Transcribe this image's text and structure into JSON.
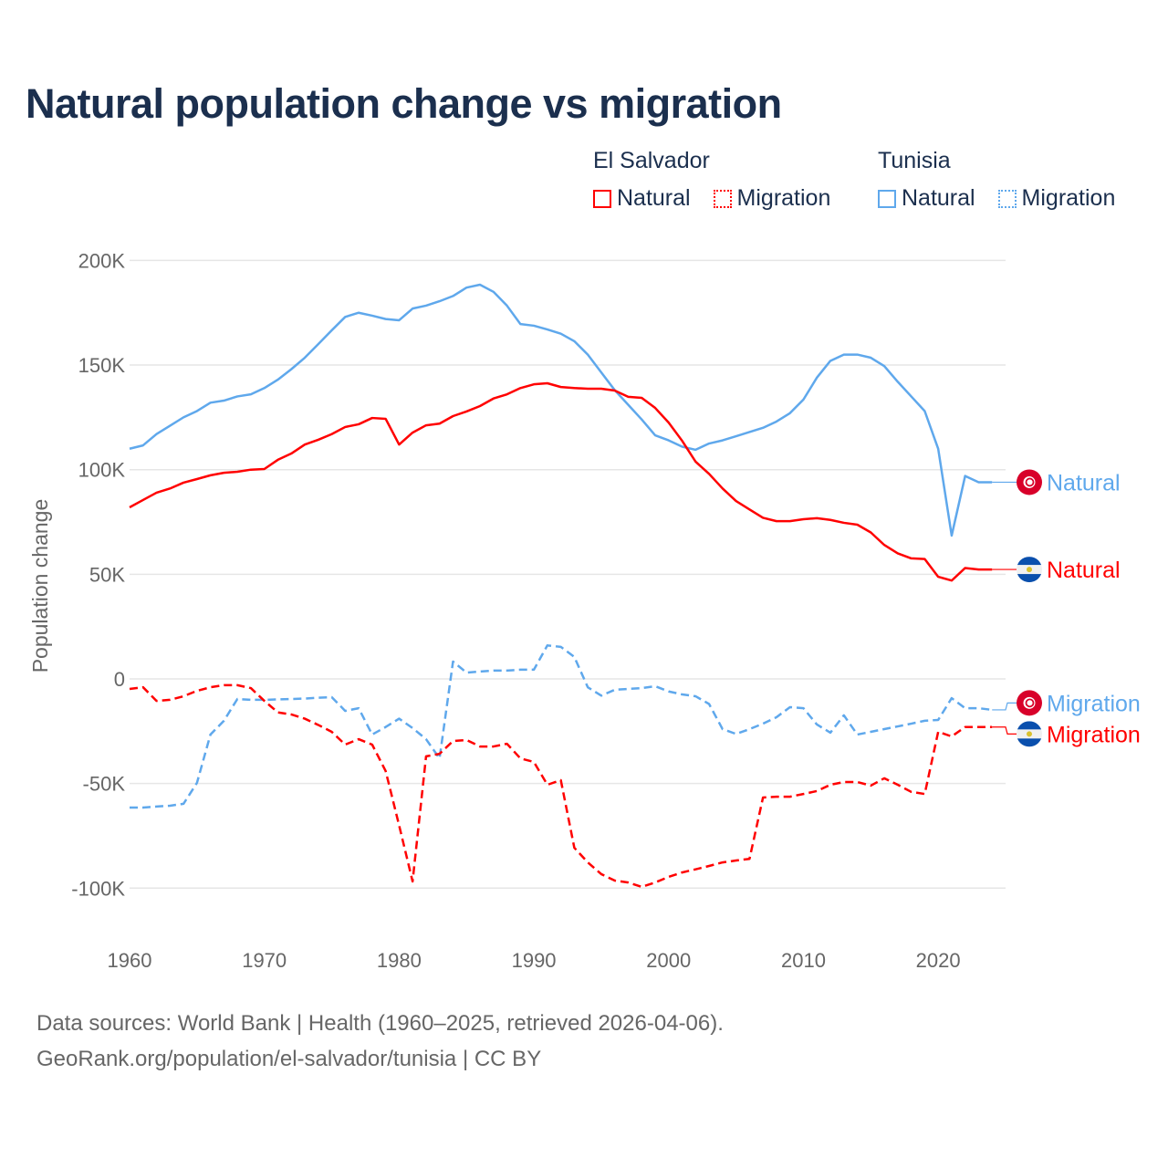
{
  "title": "Natural population change vs migration",
  "legend": {
    "groups": [
      {
        "country": "El Salvador",
        "color": "#ff0000",
        "items": [
          {
            "label": "Natural",
            "style": "solid"
          },
          {
            "label": "Migration",
            "style": "dotted"
          }
        ]
      },
      {
        "country": "Tunisia",
        "color": "#5fa8ec",
        "items": [
          {
            "label": "Natural",
            "style": "solid"
          },
          {
            "label": "Migration",
            "style": "dotted"
          }
        ]
      }
    ]
  },
  "footer": {
    "line1": "Data sources: World Bank | Health (1960–2025, retrieved 2026-04-06).",
    "line2": "GeoRank.org/population/el-salvador/tunisia | CC BY"
  },
  "chart_data": {
    "type": "line",
    "title": "Natural population change vs migration",
    "xlabel": "",
    "ylabel": "Population change",
    "xlim": [
      1960,
      2025
    ],
    "ylim": [
      -120000,
      200000
    ],
    "x_ticks": [
      1960,
      1970,
      1980,
      1990,
      2000,
      2010,
      2020
    ],
    "y_ticks": [
      {
        "v": 200000,
        "label": "200K"
      },
      {
        "v": 150000,
        "label": "150K"
      },
      {
        "v": 100000,
        "label": "100K"
      },
      {
        "v": 50000,
        "label": "50K"
      },
      {
        "v": 0,
        "label": "0"
      },
      {
        "v": -50000,
        "label": "-50K"
      },
      {
        "v": -100000,
        "label": "-100K"
      }
    ],
    "grid": true,
    "x_start": 1960,
    "series": [
      {
        "name": "Tunisia Natural",
        "end_label": "Natural",
        "flag": "tunisia",
        "color": "#5fa8ec",
        "dash": false,
        "values": [
          110,
          111.6,
          117,
          121,
          125,
          128,
          132,
          133,
          135,
          136,
          139,
          143,
          148,
          153.5,
          160,
          166.6,
          173,
          175,
          173.6,
          172,
          171.4,
          177,
          178.4,
          180.5,
          183,
          187,
          188.4,
          185,
          178.4,
          169.6,
          168.8,
          167,
          165,
          161.4,
          155,
          146.5,
          138,
          131,
          124,
          116.4,
          114,
          111,
          109.5,
          112.5,
          114,
          116,
          118,
          120,
          123,
          127,
          133.5,
          144,
          152,
          155,
          155,
          153.5,
          149.5,
          142,
          135,
          128,
          110,
          68.5,
          97,
          94,
          94
        ]
      },
      {
        "name": "El Salvador Natural",
        "end_label": "Natural",
        "flag": "el-salvador",
        "color": "#ff0000",
        "dash": false,
        "values": [
          82,
          85.5,
          89,
          91,
          93.8,
          95.5,
          97.3,
          98.5,
          99,
          100,
          100.3,
          104.7,
          107.7,
          112,
          114.3,
          117,
          120.4,
          121.7,
          124.7,
          124.3,
          112,
          117.7,
          121.2,
          122,
          125.6,
          127.8,
          130.4,
          134,
          136,
          139,
          140.8,
          141.3,
          139.5,
          139,
          138.7,
          138.7,
          137.8,
          134.8,
          134.3,
          129.5,
          122.5,
          113.8,
          103.8,
          98,
          91,
          85,
          81,
          77,
          75.4,
          75.4,
          76.3,
          76.8,
          76,
          74.6,
          73.7,
          70,
          64,
          60,
          57.6,
          57.3,
          48.8,
          47,
          53,
          52.3,
          52.3
        ]
      },
      {
        "name": "Tunisia Migration",
        "end_label": "Migration",
        "flag": "tunisia",
        "color": "#5fa8ec",
        "dash": true,
        "values": [
          -61.5,
          -61.5,
          -61,
          -60.6,
          -59.7,
          -49.7,
          -26.6,
          -20,
          -9.6,
          -10,
          -10,
          -9.8,
          -9.6,
          -9.4,
          -9,
          -8.7,
          -15.3,
          -14,
          -26.6,
          -23,
          -19,
          -23.5,
          -28.8,
          -38,
          8.3,
          3,
          3.5,
          4,
          4,
          4.4,
          4.4,
          16,
          15.3,
          10.5,
          -4,
          -8,
          -5.2,
          -4.8,
          -4.4,
          -3.5,
          -6,
          -7.4,
          -8.3,
          -12,
          -24,
          -26.3,
          -24,
          -21.4,
          -18.3,
          -13.5,
          -14,
          -21.8,
          -25.7,
          -17.4,
          -26.6,
          -25.3,
          -24,
          -22.7,
          -21.4,
          -20,
          -19.6,
          -9.2,
          -14,
          -14,
          -14.8
        ]
      },
      {
        "name": "El Salvador Migration",
        "end_label": "Migration",
        "flag": "el-salvador",
        "color": "#ff0000",
        "dash": true,
        "values": [
          -4.8,
          -4,
          -10.5,
          -10,
          -8.3,
          -5.7,
          -4,
          -3,
          -3,
          -4.4,
          -10.5,
          -16,
          -17,
          -19,
          -22,
          -25.3,
          -31.4,
          -28.8,
          -31.4,
          -44,
          -70,
          -96.8,
          -37,
          -35.8,
          -29.7,
          -29.2,
          -32.3,
          -32.3,
          -31,
          -38,
          -39.7,
          -50.6,
          -48.4,
          -80.7,
          -87.7,
          -93.3,
          -96.4,
          -97.3,
          -99.4,
          -97.3,
          -94.6,
          -92.5,
          -91,
          -89.4,
          -87.7,
          -86.8,
          -86,
          -56.7,
          -56.3,
          -56.3,
          -55,
          -53.6,
          -50.6,
          -49.3,
          -49.3,
          -51,
          -47.5,
          -50.6,
          -54,
          -55,
          -25.3,
          -27.5,
          -23,
          -23,
          -23
        ]
      }
    ],
    "value_unit": "thousands"
  }
}
